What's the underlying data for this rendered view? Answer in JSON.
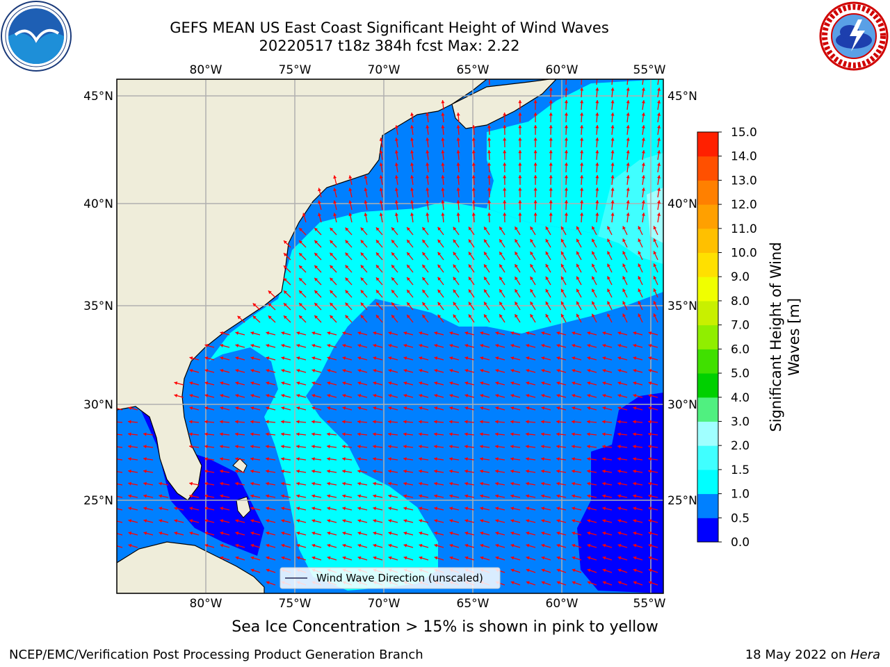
{
  "title": {
    "line1": "GEFS MEAN US East Coast Significant Height of Wind Waves",
    "line2": "20220517 t18z 384h fcst   Max: 2.22"
  },
  "map": {
    "lon_labels": [
      "80°W",
      "75°W",
      "70°W",
      "65°W",
      "60°W",
      "55°W"
    ],
    "lat_labels": [
      "45°N",
      "40°N",
      "35°N",
      "30°N",
      "25°N"
    ],
    "legend_label": "Wind Wave Direction (unscaled)",
    "colors": {
      "land": "#efedda",
      "arrow": "#ff0000",
      "grid": "#b0b0b0"
    }
  },
  "colorbar": {
    "label_line1": "Significant Height of Wind",
    "label_line2": "Waves [m]",
    "tick_labels": [
      "0.0",
      "0.5",
      "1.0",
      "1.5",
      "2.0",
      "3.0",
      "4.0",
      "5.0",
      "6.0",
      "7.0",
      "8.0",
      "9.0",
      "10.0",
      "11.0",
      "12.0",
      "13.0",
      "14.0",
      "15.0"
    ],
    "colors": [
      "#0000ff",
      "#0080ff",
      "#00ffff",
      "#40ffff",
      "#a0ffff",
      "#50f080",
      "#00d000",
      "#40e000",
      "#90ee00",
      "#c8f000",
      "#f0ff00",
      "#ffe000",
      "#ffc000",
      "#ffa000",
      "#ff8000",
      "#ff5000",
      "#ff2000"
    ]
  },
  "ice_note": "Sea Ice Concentration > 15% is shown in pink to yellow",
  "footer": {
    "left": "NCEP/EMC/Verification Post Processing Product Generation Branch",
    "right_prefix": "18 May 2022 on ",
    "right_machine": "Hera"
  },
  "logos": {
    "left": "noaa-logo",
    "right": "nws-logo"
  }
}
